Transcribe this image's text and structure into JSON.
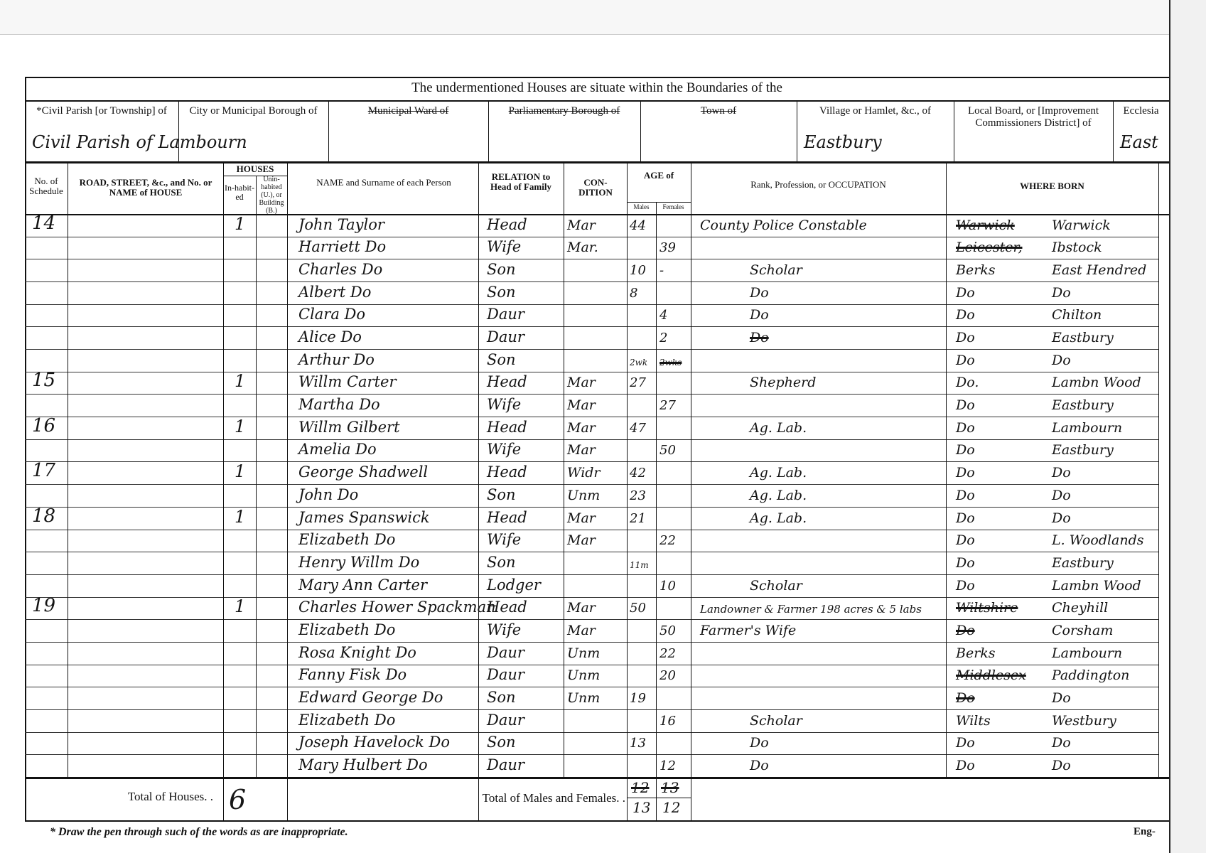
{
  "form": {
    "title": "The undermentioned Houses are situate within the Boundaries of the",
    "locations": [
      {
        "label": "*Civil Parish [or Township] of",
        "value": "Civil Parish of Lambourn"
      },
      {
        "label": "City or Municipal Borough of",
        "value": ""
      },
      {
        "label": "Municipal Ward of",
        "value": ""
      },
      {
        "label": "Parliamentary Borough of",
        "value": ""
      },
      {
        "label": "Town of",
        "value": ""
      },
      {
        "label": "Village or Hamlet, &c., of",
        "value": "Eastbury"
      },
      {
        "label": "Local Board, or [Improvement Commissioners District] of",
        "value": ""
      },
      {
        "label": "Ecclesia",
        "value": "East"
      }
    ],
    "columns": {
      "schedule": "No. of Schedule",
      "road": "ROAD, STREET, &c., and No. or NAME of HOUSE",
      "houses": "HOUSES",
      "inhabited": "In-habit-ed",
      "uninhabited": "Unin-habited (U.), or Building (B.)",
      "name": "NAME and Surname of each Person",
      "relation": "RELATION to Head of Family",
      "condition": "CON-DITION",
      "age": "AGE of",
      "males": "Males",
      "females": "Females",
      "occupation": "Rank, Profession, or OCCUPATION",
      "born": "WHERE BORN"
    },
    "rows": [
      {
        "schedule": "14",
        "inhabited": "1",
        "name": "John Taylor",
        "relation": "Head",
        "condition": "Mar",
        "male": "44",
        "female": "",
        "occupation": "County Police Constable",
        "born_county": "Warwick",
        "born_county_struck": true,
        "born_place": "Warwick"
      },
      {
        "schedule": "",
        "inhabited": "",
        "name": "Harriett  Do",
        "relation": "Wife",
        "condition": "Mar.",
        "male": "",
        "female": "39",
        "occupation": "",
        "born_county": "Leicester,",
        "born_county_struck": true,
        "born_place": "Ibstock"
      },
      {
        "schedule": "",
        "inhabited": "",
        "name": "Charles  Do",
        "relation": "Son",
        "condition": "",
        "male": "10",
        "female": "-",
        "occupation": "Scholar",
        "born_county": "Berks",
        "born_place": "East Hendred"
      },
      {
        "schedule": "",
        "inhabited": "",
        "name": "Albert  Do",
        "relation": "Son",
        "condition": "",
        "male": "8",
        "female": "",
        "occupation": "Do",
        "born_county": "Do",
        "born_place": "Do"
      },
      {
        "schedule": "",
        "inhabited": "",
        "name": "Clara  Do",
        "relation": "Daur",
        "condition": "",
        "male": "",
        "female": "4",
        "occupation": "Do",
        "born_county": "Do",
        "born_place": "Chilton"
      },
      {
        "schedule": "",
        "inhabited": "",
        "name": "Alice  Do",
        "relation": "Daur",
        "condition": "",
        "male": "",
        "female": "2",
        "occupation": "Do",
        "occupation_struck": true,
        "born_county": "Do",
        "born_place": "Eastbury"
      },
      {
        "schedule": "",
        "inhabited": "",
        "name": "Arthur  Do",
        "relation": "Son",
        "condition": "",
        "male": "2wk",
        "female": "2wks",
        "female_struck": true,
        "occupation": "",
        "born_county": "Do",
        "born_place": "Do"
      },
      {
        "schedule": "15",
        "inhabited": "1",
        "name": "Willm Carter",
        "relation": "Head",
        "condition": "Mar",
        "male": "27",
        "female": "",
        "occupation": "Shepherd",
        "born_county": "Do.",
        "born_place": "Lambn Wood"
      },
      {
        "schedule": "",
        "inhabited": "",
        "name": "Martha  Do",
        "relation": "Wife",
        "condition": "Mar",
        "male": "",
        "female": "27",
        "occupation": "",
        "born_county": "Do",
        "born_place": "Eastbury"
      },
      {
        "schedule": "16",
        "inhabited": "1",
        "name": "Willm Gilbert",
        "relation": "Head",
        "condition": "Mar",
        "male": "47",
        "female": "",
        "occupation": "Ag. Lab.",
        "born_county": "Do",
        "born_place": "Lambourn"
      },
      {
        "schedule": "",
        "inhabited": "",
        "name": "Amelia  Do",
        "relation": "Wife",
        "condition": "Mar",
        "male": "",
        "female": "50",
        "occupation": "",
        "born_county": "Do",
        "born_place": "Eastbury"
      },
      {
        "schedule": "17",
        "inhabited": "1",
        "name": "George Shadwell",
        "relation": "Head",
        "condition": "Widr",
        "male": "42",
        "female": "",
        "occupation": "Ag. Lab.",
        "born_county": "Do",
        "born_place": "Do"
      },
      {
        "schedule": "",
        "inhabited": "",
        "name": "John  Do",
        "relation": "Son",
        "condition": "Unm",
        "male": "23",
        "female": "",
        "occupation": "Ag. Lab.",
        "born_county": "Do",
        "born_place": "Do"
      },
      {
        "schedule": "18",
        "inhabited": "1",
        "name": "James Spanswick",
        "relation": "Head",
        "condition": "Mar",
        "male": "21",
        "female": "",
        "occupation": "Ag. Lab.",
        "born_county": "Do",
        "born_place": "Do"
      },
      {
        "schedule": "",
        "inhabited": "",
        "name": "Elizabeth  Do",
        "relation": "Wife",
        "condition": "Mar",
        "male": "",
        "female": "22",
        "occupation": "",
        "born_county": "Do",
        "born_place": "L. Woodlands"
      },
      {
        "schedule": "",
        "inhabited": "",
        "name": "Henry Willm  Do",
        "relation": "Son",
        "condition": "",
        "male": "11m",
        "female": "",
        "occupation": "",
        "born_county": "Do",
        "born_place": "Eastbury"
      },
      {
        "schedule": "",
        "inhabited": "",
        "name": "Mary Ann Carter",
        "relation": "Lodger",
        "condition": "",
        "male": "",
        "female": "10",
        "occupation": "Scholar",
        "born_county": "Do",
        "born_place": "Lambn Wood"
      },
      {
        "schedule": "19",
        "inhabited": "1",
        "name": "Charles Hower Spackman",
        "relation": "Head",
        "condition": "Mar",
        "male": "50",
        "female": "",
        "occupation": "Landowner & Farmer 198 acres & 5 labs",
        "born_county": "Wiltshire",
        "born_county_struck": true,
        "born_place": "Cheyhill"
      },
      {
        "schedule": "",
        "inhabited": "",
        "name": "Elizabeth  Do",
        "relation": "Wife",
        "condition": "Mar",
        "male": "",
        "female": "50",
        "occupation": "Farmer's Wife",
        "born_county": "Do",
        "born_county_struck": true,
        "born_place": "Corsham"
      },
      {
        "schedule": "",
        "inhabited": "",
        "name": "Rosa Knight  Do",
        "relation": "Daur",
        "condition": "Unm",
        "male": "",
        "female": "22",
        "occupation": "",
        "born_county": "Berks",
        "born_place": "Lambourn"
      },
      {
        "schedule": "",
        "inhabited": "",
        "name": "Fanny Fisk  Do",
        "relation": "Daur",
        "condition": "Unm",
        "male": "",
        "female": "20",
        "occupation": "",
        "born_county": "Middlesex",
        "born_county_struck": true,
        "born_place": "Paddington"
      },
      {
        "schedule": "",
        "inhabited": "",
        "name": "Edward George  Do",
        "relation": "Son",
        "condition": "Unm",
        "male": "19",
        "female": "",
        "occupation": "",
        "born_county": "Do",
        "born_county_struck": true,
        "born_place": "Do"
      },
      {
        "schedule": "",
        "inhabited": "",
        "name": "Elizabeth  Do",
        "relation": "Daur",
        "condition": "",
        "male": "",
        "female": "16",
        "occupation": "Scholar",
        "born_county": "Wilts",
        "born_place": "Westbury"
      },
      {
        "schedule": "",
        "inhabited": "",
        "name": "Joseph Havelock  Do",
        "relation": "Son",
        "condition": "",
        "male": "13",
        "female": "",
        "occupation": "Do",
        "born_county": "Do",
        "born_place": "Do"
      },
      {
        "schedule": "",
        "inhabited": "",
        "name": "Mary Hulbert  Do",
        "relation": "Daur",
        "condition": "",
        "male": "",
        "female": "12",
        "occupation": "Do",
        "born_county": "Do",
        "born_place": "Do"
      }
    ],
    "totals": {
      "houses_label": "Total of Houses. .",
      "houses_value": "6",
      "persons_label": "Total of Males and Females. .",
      "males_struck": "12",
      "males": "13",
      "females_struck": "13",
      "females": "12"
    },
    "footnote": "* Draw the pen through such of the words as are inappropriate.",
    "corner_mark": "Eng-"
  }
}
